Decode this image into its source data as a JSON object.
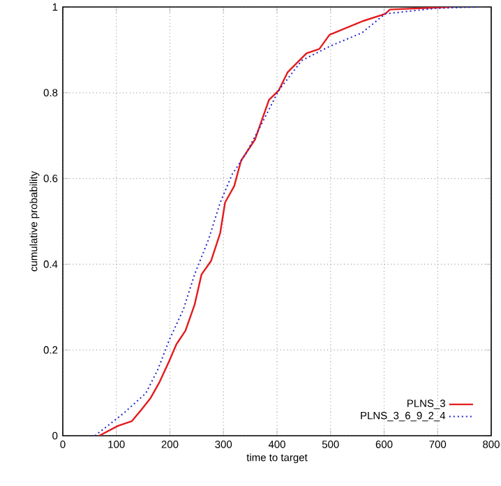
{
  "chart_data": {
    "type": "line",
    "xlabel": "time to target",
    "ylabel": "cumulative probability",
    "xlim": [
      0,
      800
    ],
    "ylim": [
      0,
      1
    ],
    "xticks": [
      0,
      100,
      200,
      300,
      400,
      500,
      600,
      700,
      800
    ],
    "yticks": [
      0,
      0.2,
      0.4,
      0.6,
      0.8,
      1
    ],
    "grid": true,
    "legend": "bottom right",
    "series": [
      {
        "name": "PLNS_3",
        "color": "#e41a1c",
        "line_style": "solid",
        "x": [
          68,
          103,
          129,
          147,
          164,
          181,
          199,
          212,
          229,
          246,
          259,
          277,
          294,
          303,
          320,
          333,
          359,
          385,
          403,
          420,
          455,
          479,
          498,
          560,
          602,
          611,
          724
        ],
        "values": [
          0,
          0.023,
          0.034,
          0.061,
          0.088,
          0.126,
          0.175,
          0.213,
          0.245,
          0.305,
          0.376,
          0.408,
          0.473,
          0.544,
          0.582,
          0.642,
          0.691,
          0.783,
          0.805,
          0.848,
          0.892,
          0.902,
          0.935,
          0.967,
          0.984,
          0.994,
          1.0
        ]
      },
      {
        "name": "PLNS_3_6_9_2_4",
        "color": "#2222cc",
        "line_style": "dotted",
        "x": [
          60,
          95,
          116,
          155,
          177,
          199,
          225,
          246,
          272,
          294,
          316,
          342,
          372,
          403,
          446,
          498,
          559,
          602,
          697,
          775
        ],
        "values": [
          0,
          0.034,
          0.055,
          0.099,
          0.153,
          0.224,
          0.294,
          0.376,
          0.457,
          0.544,
          0.609,
          0.658,
          0.729,
          0.805,
          0.875,
          0.908,
          0.94,
          0.984,
          0.997,
          1.0
        ]
      }
    ]
  }
}
